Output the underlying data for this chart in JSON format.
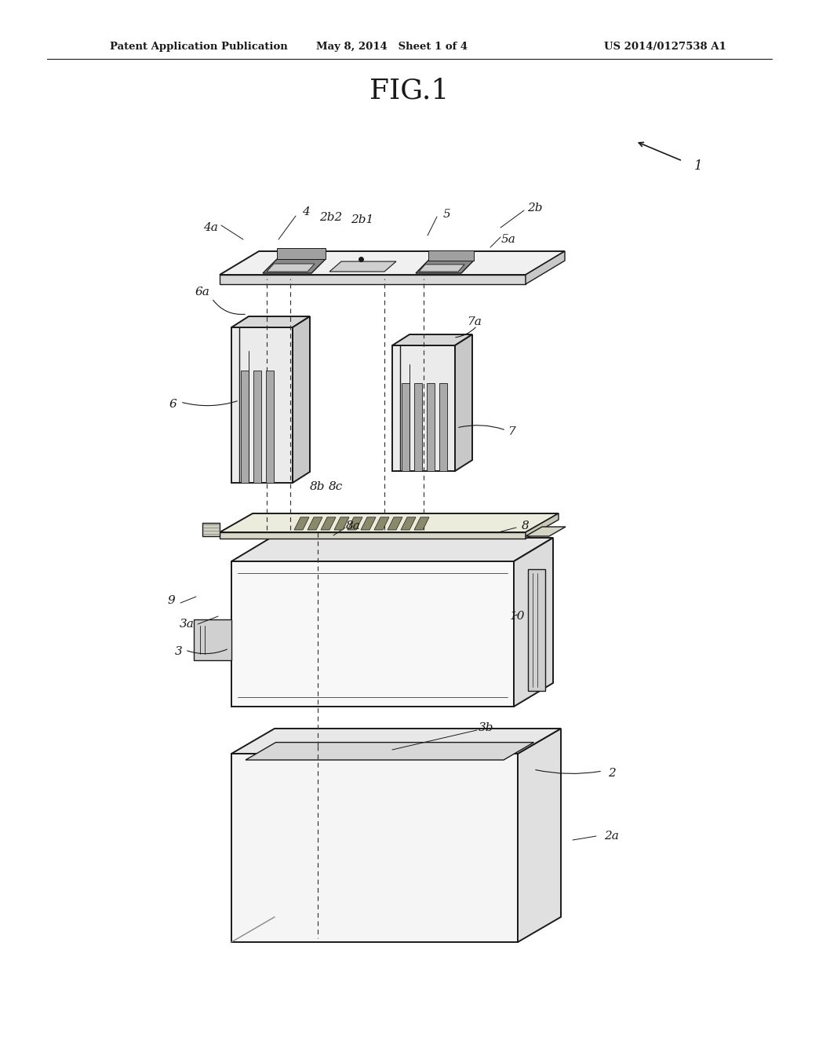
{
  "bg_color": "#ffffff",
  "line_color": "#1a1a1a",
  "header_left": "Patent Application Publication",
  "header_mid": "May 8, 2014   Sheet 1 of 4",
  "header_right": "US 2014/0127538 A1",
  "fig_title": "FIG.1"
}
